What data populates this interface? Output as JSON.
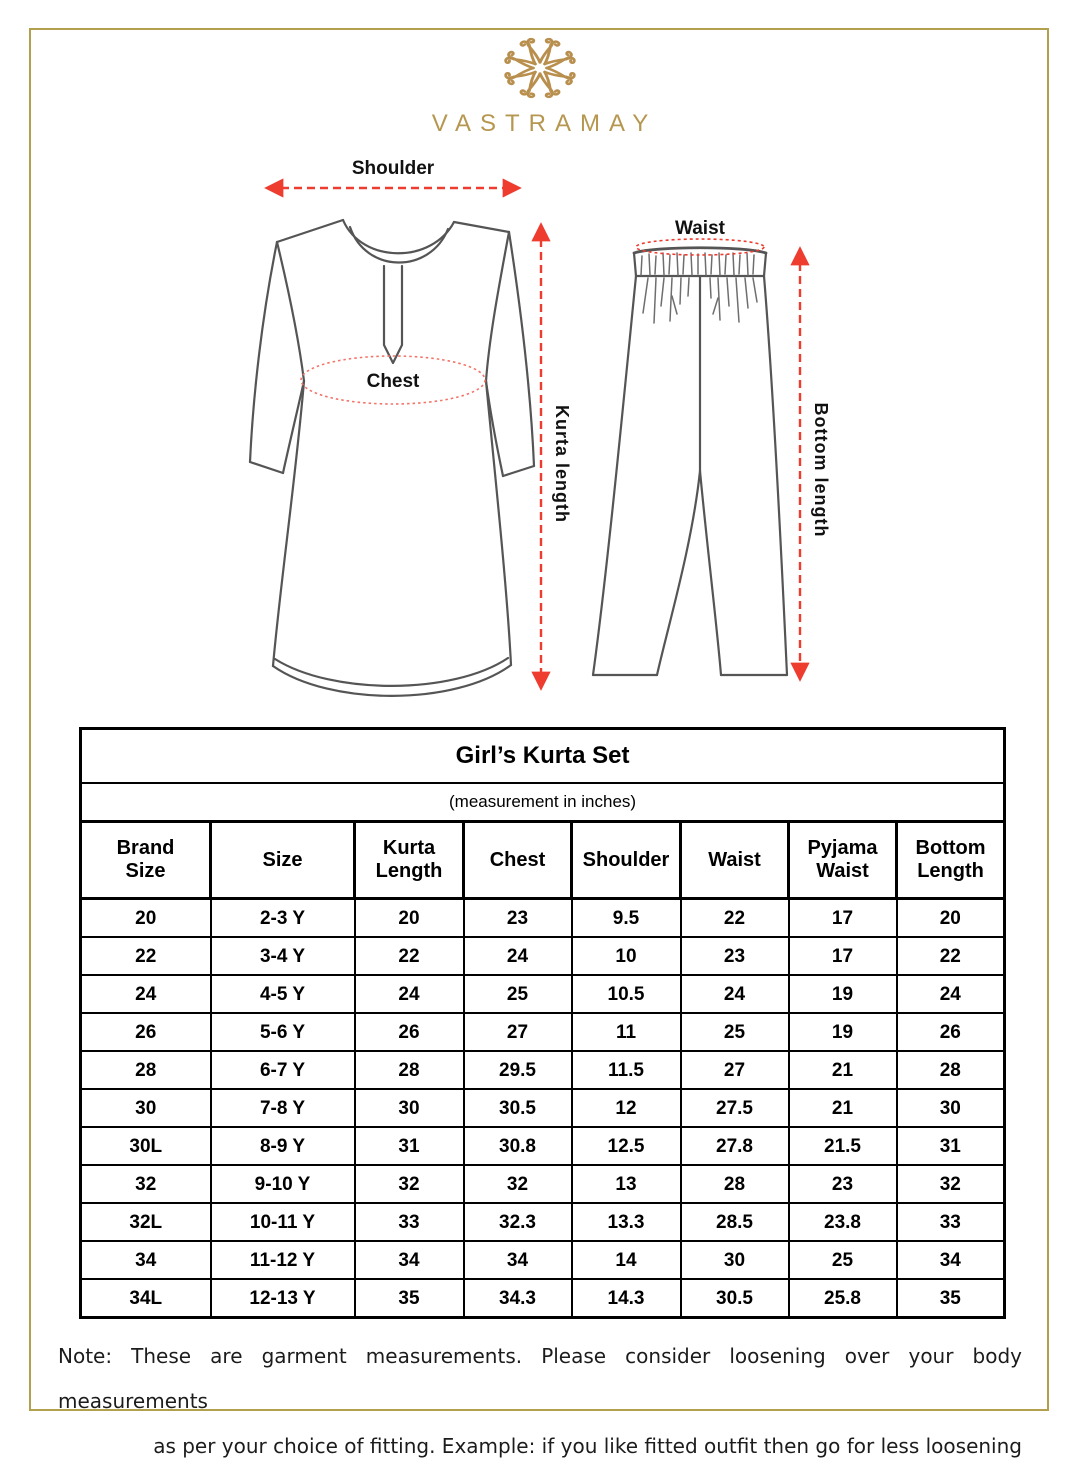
{
  "brand": {
    "name": "VASTRAMAY"
  },
  "colors": {
    "frame_gold": "#b2a04e",
    "logo_gold": "#b6974f",
    "arrow_red": "#ee3c2f",
    "chest_dotted_red": "#f2756a",
    "garment_line": "#555555",
    "table_border": "#000000"
  },
  "diagram": {
    "kurta": {
      "shoulder_label": "Shoulder",
      "chest_label": "Chest",
      "length_label": "Kurta length"
    },
    "pyjama": {
      "waist_label": "Waist",
      "length_label": "Bottom length"
    }
  },
  "size_chart": {
    "title": "Girl’s Kurta Set",
    "subtitle": "(measurement in inches)",
    "columns": [
      "Brand\nSize",
      "Size",
      "Kurta\nLength",
      "Chest",
      "Shoulder",
      "Waist",
      "Pyjama\nWaist",
      "Bottom\nLength"
    ],
    "rows": [
      [
        "20",
        "2-3 Y",
        "20",
        "23",
        "9.5",
        "22",
        "17",
        "20"
      ],
      [
        "22",
        "3-4 Y",
        "22",
        "24",
        "10",
        "23",
        "17",
        "22"
      ],
      [
        "24",
        "4-5 Y",
        "24",
        "25",
        "10.5",
        "24",
        "19",
        "24"
      ],
      [
        "26",
        "5-6 Y",
        "26",
        "27",
        "11",
        "25",
        "19",
        "26"
      ],
      [
        "28",
        "6-7 Y",
        "28",
        "29.5",
        "11.5",
        "27",
        "21",
        "28"
      ],
      [
        "30",
        "7-8 Y",
        "30",
        "30.5",
        "12",
        "27.5",
        "21",
        "30"
      ],
      [
        "30L",
        "8-9 Y",
        "31",
        "30.8",
        "12.5",
        "27.8",
        "21.5",
        "31"
      ],
      [
        "32",
        "9-10 Y",
        "32",
        "32",
        "13",
        "28",
        "23",
        "32"
      ],
      [
        "32L",
        "10-11 Y",
        "33",
        "32.3",
        "13.3",
        "28.5",
        "23.8",
        "33"
      ],
      [
        "34",
        "11-12 Y",
        "34",
        "34",
        "14",
        "30",
        "25",
        "34"
      ],
      [
        "34L",
        "12-13 Y",
        "35",
        "34.3",
        "14.3",
        "30.5",
        "25.8",
        "35"
      ]
    ]
  },
  "note": {
    "line1": "Note: These are garment measurements. Please consider loosening over your body measurements",
    "line2": "as per your choice of fitting. Example: if you like fitted outfit then go for less loosening"
  }
}
